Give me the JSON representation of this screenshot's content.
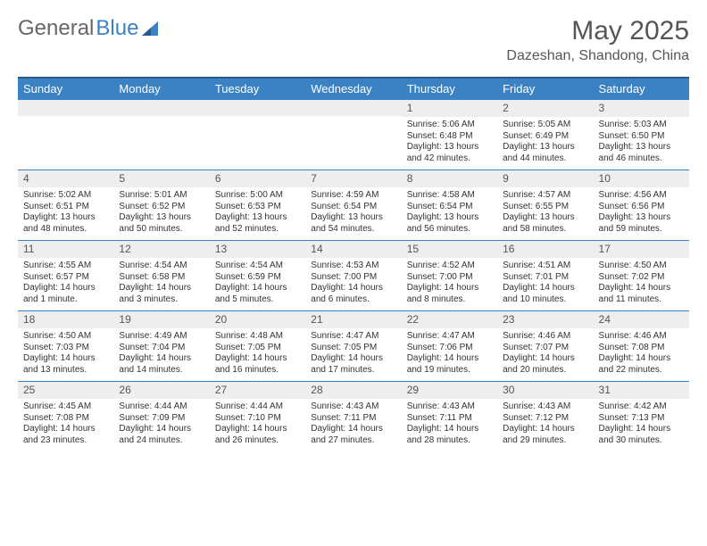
{
  "logo": {
    "text1": "General",
    "text2": "Blue"
  },
  "title": "May 2025",
  "location": "Dazeshan, Shandong, China",
  "colors": {
    "header_bg": "#3b82c4",
    "header_text": "#ffffff",
    "daynum_bg": "#eeeeee",
    "border": "#3b82c4",
    "body_text": "#333333"
  },
  "days_of_week": [
    "Sunday",
    "Monday",
    "Tuesday",
    "Wednesday",
    "Thursday",
    "Friday",
    "Saturday"
  ],
  "cells": [
    {
      "d": "",
      "sr": "",
      "ss": "",
      "dl": ""
    },
    {
      "d": "",
      "sr": "",
      "ss": "",
      "dl": ""
    },
    {
      "d": "",
      "sr": "",
      "ss": "",
      "dl": ""
    },
    {
      "d": "",
      "sr": "",
      "ss": "",
      "dl": ""
    },
    {
      "d": "1",
      "sr": "Sunrise: 5:06 AM",
      "ss": "Sunset: 6:48 PM",
      "dl": "Daylight: 13 hours and 42 minutes."
    },
    {
      "d": "2",
      "sr": "Sunrise: 5:05 AM",
      "ss": "Sunset: 6:49 PM",
      "dl": "Daylight: 13 hours and 44 minutes."
    },
    {
      "d": "3",
      "sr": "Sunrise: 5:03 AM",
      "ss": "Sunset: 6:50 PM",
      "dl": "Daylight: 13 hours and 46 minutes."
    },
    {
      "d": "4",
      "sr": "Sunrise: 5:02 AM",
      "ss": "Sunset: 6:51 PM",
      "dl": "Daylight: 13 hours and 48 minutes."
    },
    {
      "d": "5",
      "sr": "Sunrise: 5:01 AM",
      "ss": "Sunset: 6:52 PM",
      "dl": "Daylight: 13 hours and 50 minutes."
    },
    {
      "d": "6",
      "sr": "Sunrise: 5:00 AM",
      "ss": "Sunset: 6:53 PM",
      "dl": "Daylight: 13 hours and 52 minutes."
    },
    {
      "d": "7",
      "sr": "Sunrise: 4:59 AM",
      "ss": "Sunset: 6:54 PM",
      "dl": "Daylight: 13 hours and 54 minutes."
    },
    {
      "d": "8",
      "sr": "Sunrise: 4:58 AM",
      "ss": "Sunset: 6:54 PM",
      "dl": "Daylight: 13 hours and 56 minutes."
    },
    {
      "d": "9",
      "sr": "Sunrise: 4:57 AM",
      "ss": "Sunset: 6:55 PM",
      "dl": "Daylight: 13 hours and 58 minutes."
    },
    {
      "d": "10",
      "sr": "Sunrise: 4:56 AM",
      "ss": "Sunset: 6:56 PM",
      "dl": "Daylight: 13 hours and 59 minutes."
    },
    {
      "d": "11",
      "sr": "Sunrise: 4:55 AM",
      "ss": "Sunset: 6:57 PM",
      "dl": "Daylight: 14 hours and 1 minute."
    },
    {
      "d": "12",
      "sr": "Sunrise: 4:54 AM",
      "ss": "Sunset: 6:58 PM",
      "dl": "Daylight: 14 hours and 3 minutes."
    },
    {
      "d": "13",
      "sr": "Sunrise: 4:54 AM",
      "ss": "Sunset: 6:59 PM",
      "dl": "Daylight: 14 hours and 5 minutes."
    },
    {
      "d": "14",
      "sr": "Sunrise: 4:53 AM",
      "ss": "Sunset: 7:00 PM",
      "dl": "Daylight: 14 hours and 6 minutes."
    },
    {
      "d": "15",
      "sr": "Sunrise: 4:52 AM",
      "ss": "Sunset: 7:00 PM",
      "dl": "Daylight: 14 hours and 8 minutes."
    },
    {
      "d": "16",
      "sr": "Sunrise: 4:51 AM",
      "ss": "Sunset: 7:01 PM",
      "dl": "Daylight: 14 hours and 10 minutes."
    },
    {
      "d": "17",
      "sr": "Sunrise: 4:50 AM",
      "ss": "Sunset: 7:02 PM",
      "dl": "Daylight: 14 hours and 11 minutes."
    },
    {
      "d": "18",
      "sr": "Sunrise: 4:50 AM",
      "ss": "Sunset: 7:03 PM",
      "dl": "Daylight: 14 hours and 13 minutes."
    },
    {
      "d": "19",
      "sr": "Sunrise: 4:49 AM",
      "ss": "Sunset: 7:04 PM",
      "dl": "Daylight: 14 hours and 14 minutes."
    },
    {
      "d": "20",
      "sr": "Sunrise: 4:48 AM",
      "ss": "Sunset: 7:05 PM",
      "dl": "Daylight: 14 hours and 16 minutes."
    },
    {
      "d": "21",
      "sr": "Sunrise: 4:47 AM",
      "ss": "Sunset: 7:05 PM",
      "dl": "Daylight: 14 hours and 17 minutes."
    },
    {
      "d": "22",
      "sr": "Sunrise: 4:47 AM",
      "ss": "Sunset: 7:06 PM",
      "dl": "Daylight: 14 hours and 19 minutes."
    },
    {
      "d": "23",
      "sr": "Sunrise: 4:46 AM",
      "ss": "Sunset: 7:07 PM",
      "dl": "Daylight: 14 hours and 20 minutes."
    },
    {
      "d": "24",
      "sr": "Sunrise: 4:46 AM",
      "ss": "Sunset: 7:08 PM",
      "dl": "Daylight: 14 hours and 22 minutes."
    },
    {
      "d": "25",
      "sr": "Sunrise: 4:45 AM",
      "ss": "Sunset: 7:08 PM",
      "dl": "Daylight: 14 hours and 23 minutes."
    },
    {
      "d": "26",
      "sr": "Sunrise: 4:44 AM",
      "ss": "Sunset: 7:09 PM",
      "dl": "Daylight: 14 hours and 24 minutes."
    },
    {
      "d": "27",
      "sr": "Sunrise: 4:44 AM",
      "ss": "Sunset: 7:10 PM",
      "dl": "Daylight: 14 hours and 26 minutes."
    },
    {
      "d": "28",
      "sr": "Sunrise: 4:43 AM",
      "ss": "Sunset: 7:11 PM",
      "dl": "Daylight: 14 hours and 27 minutes."
    },
    {
      "d": "29",
      "sr": "Sunrise: 4:43 AM",
      "ss": "Sunset: 7:11 PM",
      "dl": "Daylight: 14 hours and 28 minutes."
    },
    {
      "d": "30",
      "sr": "Sunrise: 4:43 AM",
      "ss": "Sunset: 7:12 PM",
      "dl": "Daylight: 14 hours and 29 minutes."
    },
    {
      "d": "31",
      "sr": "Sunrise: 4:42 AM",
      "ss": "Sunset: 7:13 PM",
      "dl": "Daylight: 14 hours and 30 minutes."
    }
  ]
}
